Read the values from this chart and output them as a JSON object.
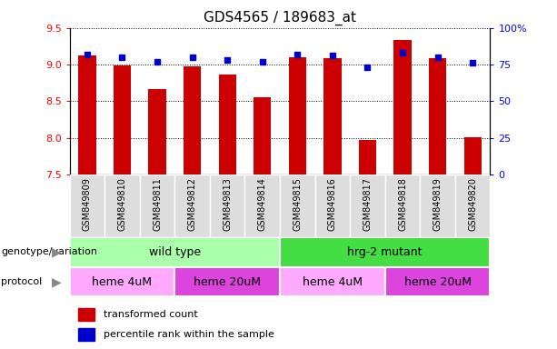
{
  "title": "GDS4565 / 189683_at",
  "samples": [
    "GSM849809",
    "GSM849810",
    "GSM849811",
    "GSM849812",
    "GSM849813",
    "GSM849814",
    "GSM849815",
    "GSM849816",
    "GSM849817",
    "GSM849818",
    "GSM849819",
    "GSM849820"
  ],
  "red_values": [
    9.12,
    8.99,
    8.67,
    8.98,
    8.87,
    8.55,
    9.1,
    9.09,
    7.97,
    9.33,
    9.09,
    8.01
  ],
  "blue_values_pct": [
    82,
    80,
    77,
    80,
    78,
    77,
    82,
    81,
    73,
    83,
    80,
    76
  ],
  "ylim_left": [
    7.5,
    9.5
  ],
  "ylim_right": [
    0,
    100
  ],
  "right_ticks": [
    0,
    25,
    50,
    75,
    100
  ],
  "right_tick_labels": [
    "0",
    "25",
    "50",
    "75",
    "100%"
  ],
  "left_ticks": [
    7.5,
    8.0,
    8.5,
    9.0,
    9.5
  ],
  "bar_color": "#cc0000",
  "dot_color": "#0000cc",
  "bar_width": 0.5,
  "bar_bottom": 7.5,
  "genotype_groups": [
    {
      "label": "wild type",
      "start": 0,
      "end": 6,
      "color": "#aaffaa"
    },
    {
      "label": "hrg-2 mutant",
      "start": 6,
      "end": 12,
      "color": "#44dd44"
    }
  ],
  "protocol_groups": [
    {
      "label": "heme 4uM",
      "start": 0,
      "end": 3,
      "color": "#ffaaff"
    },
    {
      "label": "heme 20uM",
      "start": 3,
      "end": 6,
      "color": "#dd44dd"
    },
    {
      "label": "heme 4uM",
      "start": 6,
      "end": 9,
      "color": "#ffaaff"
    },
    {
      "label": "heme 20uM",
      "start": 9,
      "end": 12,
      "color": "#dd44dd"
    }
  ],
  "legend_red_label": "transformed count",
  "legend_blue_label": "percentile rank within the sample",
  "genotype_label": "genotype/variation",
  "protocol_label": "protocol",
  "bg_color": "#ffffff",
  "sample_box_color": "#dddddd"
}
